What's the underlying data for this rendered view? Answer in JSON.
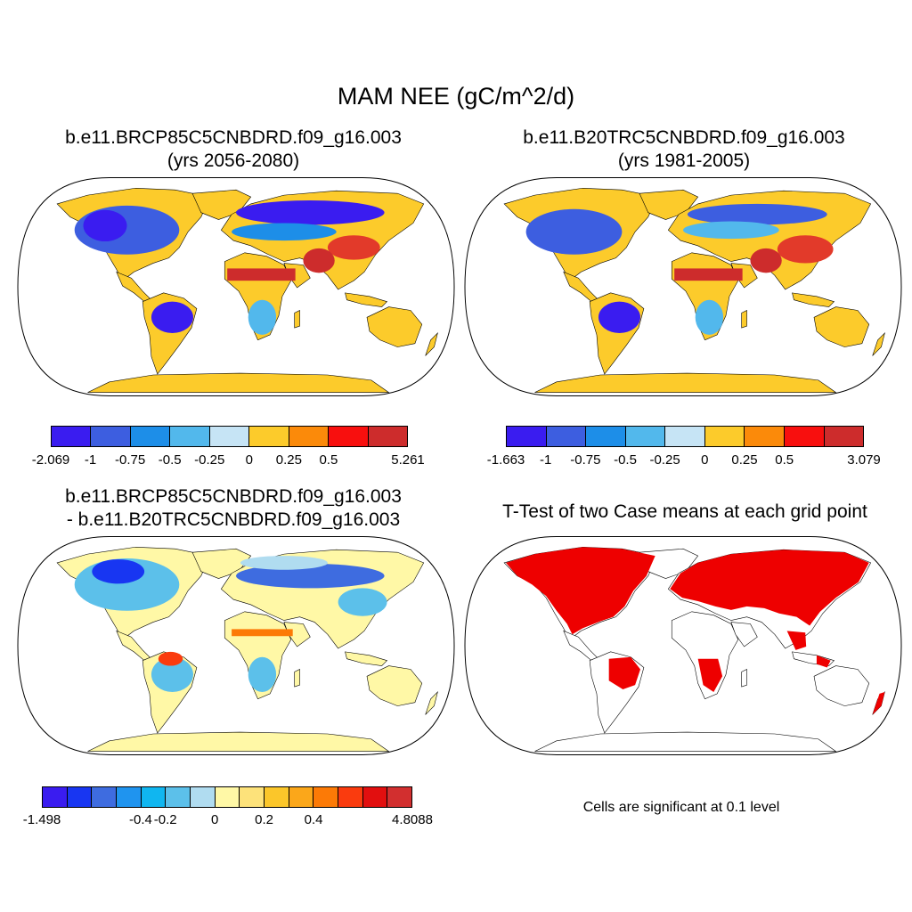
{
  "title": "MAM NEE (gC/m^2/d)",
  "panels": [
    {
      "id": "p1",
      "title_line1": "b.e11.BRCP85C5CNBDRD.f09_g16.003",
      "title_line2": "(yrs 2056-2080)",
      "colorbar": {
        "colors": [
          "#3a1cf0",
          "#3d5ee0",
          "#1d8ee8",
          "#52b8ec",
          "#c6e4f5",
          "#fccb2b",
          "#fb8a0a",
          "#f80f0e",
          "#cd2c2c"
        ],
        "labels": [
          "-2.069",
          "-1",
          "-0.75",
          "-0.5",
          "-0.25",
          "0",
          "0.25",
          "0.5",
          "5.261"
        ]
      }
    },
    {
      "id": "p2",
      "title_line1": "b.e11.B20TRC5CNBDRD.f09_g16.003",
      "title_line2": "(yrs 1981-2005)",
      "colorbar": {
        "colors": [
          "#3a1cf0",
          "#3d5ee0",
          "#1d8ee8",
          "#52b8ec",
          "#c6e4f5",
          "#fccb2b",
          "#fb8a0a",
          "#f80f0e",
          "#cd2c2c"
        ],
        "labels": [
          "-1.663",
          "-1",
          "-0.75",
          "-0.5",
          "-0.25",
          "0",
          "0.25",
          "0.5",
          "3.079"
        ]
      }
    },
    {
      "id": "p3",
      "title_line1": "b.e11.BRCP85C5CNBDRD.f09_g16.003",
      "title_line2": "- b.e11.B20TRC5CNBDRD.f09_g16.003",
      "colorbar": {
        "colors": [
          "#3a1cf0",
          "#1836f2",
          "#3e6ce0",
          "#1f94ef",
          "#10b6f0",
          "#5cc0ea",
          "#b0dcf0",
          "#fff8a6",
          "#fde27a",
          "#fbc62a",
          "#fba71a",
          "#fc7a06",
          "#fa3b0e",
          "#e20f0f",
          "#d22f2f"
        ],
        "labels": [
          "-1.498",
          "-0.4",
          "-0.2",
          "0",
          "0.2",
          "0.4",
          "4.8088"
        ]
      }
    },
    {
      "id": "p4",
      "title_line1": "T-Test of two Case means at each grid point",
      "note": "Cells are significant at 0.1 level"
    }
  ]
}
